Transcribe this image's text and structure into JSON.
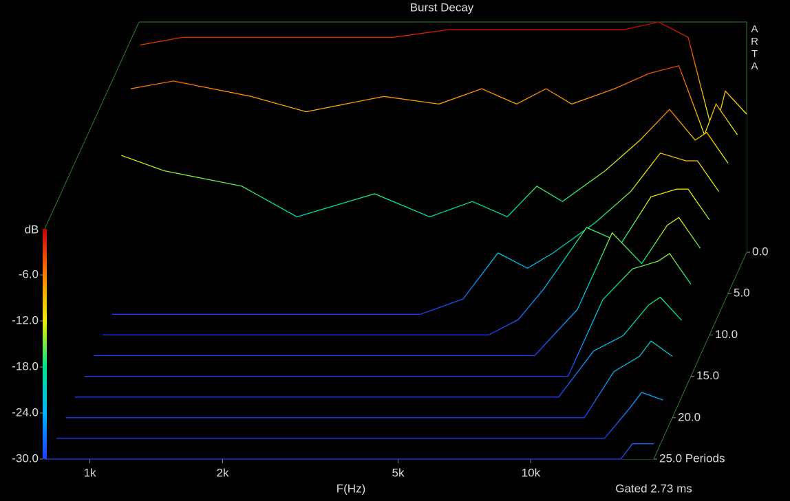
{
  "chart_data": {
    "type": "waterfall",
    "title": "Burst Decay",
    "watermark": "ARTA",
    "ylabel": "dB",
    "xlabel": "F(Hz)",
    "note": "Gated 2.73 ms",
    "log_x": true,
    "x": [
      800,
      1000,
      1500,
      2000,
      3000,
      4000,
      5000,
      6000,
      7000,
      8000,
      10000,
      12000,
      14000,
      16000,
      17000,
      19000
    ],
    "xlim": [
      790,
      19000
    ],
    "xticks": [
      {
        "value": 1000,
        "label": "1k"
      },
      {
        "value": 2000,
        "label": "2k"
      },
      {
        "value": 5000,
        "label": "5k"
      },
      {
        "value": 10000,
        "label": "10k"
      }
    ],
    "ylim": [
      -30,
      0
    ],
    "yticks": [
      {
        "value": -30,
        "label": "-30.0"
      },
      {
        "value": -24,
        "label": "-24.0"
      },
      {
        "value": -18,
        "label": "-18.0"
      },
      {
        "value": -12,
        "label": "-12.0"
      },
      {
        "value": -6,
        "label": "-6.0"
      }
    ],
    "zlim": [
      0,
      25
    ],
    "zticks": [
      {
        "value": 0,
        "label": "0.0"
      },
      {
        "value": 5,
        "label": "5.0"
      },
      {
        "value": 10,
        "label": "10.0"
      },
      {
        "value": 15,
        "label": "15.0"
      },
      {
        "value": 20,
        "label": "20.0"
      },
      {
        "value": 25,
        "label": "25.0 Periods"
      }
    ],
    "colormap": [
      "#1e3cff",
      "#00b4ff",
      "#00e68c",
      "#f0f000",
      "#ff8000",
      "#c80000"
    ],
    "z": [
      0,
      2.5,
      5,
      7.5,
      10,
      12.5,
      15,
      17.5,
      20,
      22.5,
      25
    ],
    "series": [
      {
        "values": [
          -3,
          -2,
          -2,
          -2,
          -2,
          -1,
          -1,
          -1,
          -1,
          -1,
          -1,
          0,
          -2,
          -15,
          -9,
          -12
        ]
      },
      {
        "values": [
          -6,
          -5,
          -7,
          -9,
          -7,
          -8,
          -6,
          -8,
          -6,
          -8,
          -6,
          -4,
          -3,
          -12,
          -8,
          -12
        ]
      },
      {
        "values": [
          -12,
          -14,
          -16,
          -20,
          -17,
          -20,
          -18,
          -20,
          -16,
          -18,
          -14,
          -10,
          -6,
          -10,
          -9,
          -13
        ]
      },
      {
        "values": [
          -30,
          -30,
          -30,
          -30,
          -30,
          -30,
          -28,
          -22,
          -24,
          -22,
          -18,
          -14,
          -9,
          -10,
          -10,
          -14
        ]
      },
      {
        "values": [
          -30,
          -30,
          -30,
          -30,
          -30,
          -30,
          -30,
          -30,
          -28,
          -24,
          -16,
          -18,
          -12,
          -11,
          -11,
          -15
        ]
      },
      {
        "values": [
          -30,
          -30,
          -30,
          -30,
          -30,
          -30,
          -30,
          -30,
          -30,
          -30,
          -24,
          -14,
          -18,
          -13,
          -12,
          -16
        ]
      },
      {
        "values": [
          -30,
          -30,
          -30,
          -30,
          -30,
          -30,
          -30,
          -30,
          -30,
          -30,
          -30,
          -20,
          -16,
          -15,
          -14,
          -18
        ]
      },
      {
        "values": [
          -30,
          -30,
          -30,
          -30,
          -30,
          -30,
          -30,
          -30,
          -30,
          -30,
          -30,
          -24,
          -22,
          -18,
          -17,
          -20
        ]
      },
      {
        "values": [
          -30,
          -30,
          -30,
          -30,
          -30,
          -30,
          -30,
          -30,
          -30,
          -30,
          -30,
          -30,
          -24,
          -22,
          -20,
          -22
        ]
      },
      {
        "values": [
          -30,
          -30,
          -30,
          -30,
          -30,
          -30,
          -30,
          -30,
          -30,
          -30,
          -30,
          -30,
          -30,
          -26,
          -24,
          -25
        ]
      },
      {
        "values": [
          -30,
          -30,
          -30,
          -30,
          -30,
          -30,
          -30,
          -30,
          -30,
          -30,
          -30,
          -30,
          -30,
          -30,
          -28,
          -28
        ]
      }
    ]
  }
}
